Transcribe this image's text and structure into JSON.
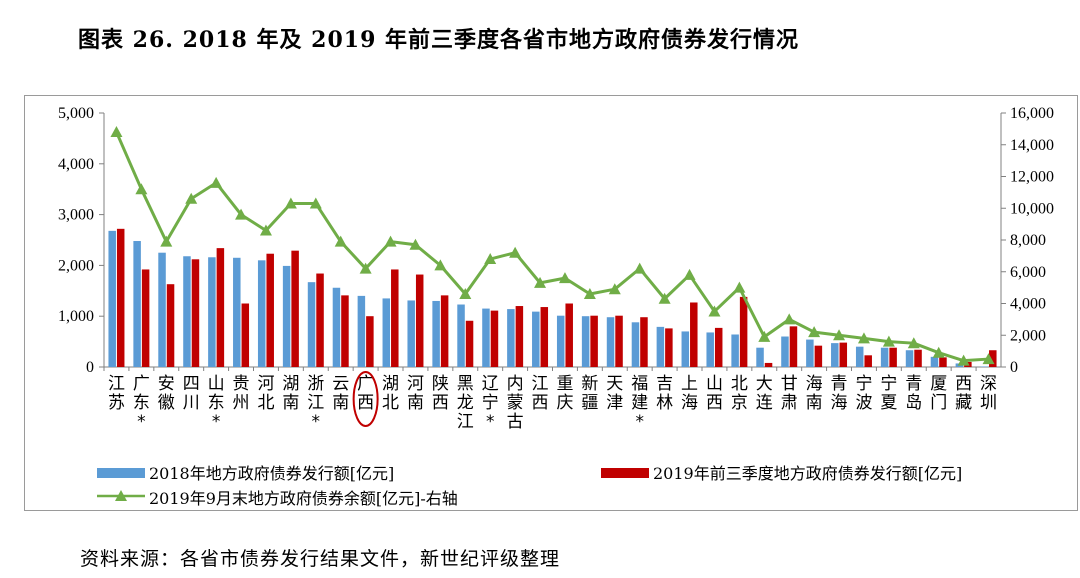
{
  "title": "图表 26.   2018 年及 2019 年前三季度各省市地方政府债券发行情况",
  "source": "资料来源：各省市债券发行结果文件，新世纪评级整理",
  "chart_data": {
    "type": "bar",
    "categories": [
      "江苏",
      "广东*",
      "安徽",
      "四川",
      "山东*",
      "贵州",
      "河北",
      "湖南",
      "浙江*",
      "云南",
      "广西",
      "湖北",
      "河南",
      "陕西",
      "黑龙江",
      "辽宁*",
      "内蒙古",
      "江西",
      "重庆",
      "新疆",
      "天津",
      "福建*",
      "吉林",
      "上海",
      "山西",
      "北京",
      "大连",
      "甘肃",
      "海南",
      "青海",
      "宁波",
      "宁夏",
      "青岛",
      "厦门",
      "西藏",
      "深圳"
    ],
    "series": [
      {
        "name": "2018年地方政府债券发行额[亿元]",
        "axis": "left",
        "color": "#5b9bd5",
        "values": [
          2680,
          2480,
          2250,
          2180,
          2160,
          2150,
          2100,
          1990,
          1670,
          1560,
          1400,
          1350,
          1310,
          1300,
          1230,
          1150,
          1140,
          1090,
          1010,
          1000,
          980,
          880,
          790,
          700,
          680,
          640,
          380,
          600,
          540,
          470,
          400,
          380,
          330,
          200,
          70,
          10
        ]
      },
      {
        "name": "2019年前三季度地方政府债券发行额[亿元]",
        "axis": "left",
        "color": "#c00000",
        "values": [
          2720,
          1920,
          1630,
          2120,
          2340,
          1250,
          2230,
          2290,
          1840,
          1410,
          1000,
          1920,
          1820,
          1410,
          910,
          1110,
          1200,
          1180,
          1250,
          1010,
          1010,
          980,
          760,
          1270,
          770,
          1380,
          80,
          800,
          420,
          480,
          230,
          380,
          340,
          190,
          100,
          330
        ]
      },
      {
        "name": "2019年9月末地方政府债券余额[亿元]-右轴",
        "axis": "right",
        "color": "#70ad47",
        "type": "line",
        "values": [
          14800,
          11200,
          7900,
          10600,
          11600,
          9600,
          8600,
          10300,
          10300,
          7900,
          6200,
          7900,
          7700,
          6400,
          4600,
          6800,
          7200,
          5300,
          5600,
          4600,
          4900,
          6200,
          4300,
          5800,
          3500,
          5000,
          1900,
          3000,
          2200,
          2000,
          1800,
          1600,
          1500,
          900,
          400,
          500
        ]
      }
    ],
    "ylim_left": [
      0,
      5000
    ],
    "ylim_right": [
      0,
      16000
    ],
    "yticks_left": [
      "0",
      "1,000",
      "2,000",
      "3,000",
      "4,000",
      "5,000"
    ],
    "yticks_right": [
      "0",
      "2,000",
      "4,000",
      "6,000",
      "8,000",
      "10,000",
      "12,000",
      "14,000",
      "16,000"
    ],
    "highlight_category": "广西",
    "highlight_color": "#c00000",
    "legend_position": "bottom"
  }
}
